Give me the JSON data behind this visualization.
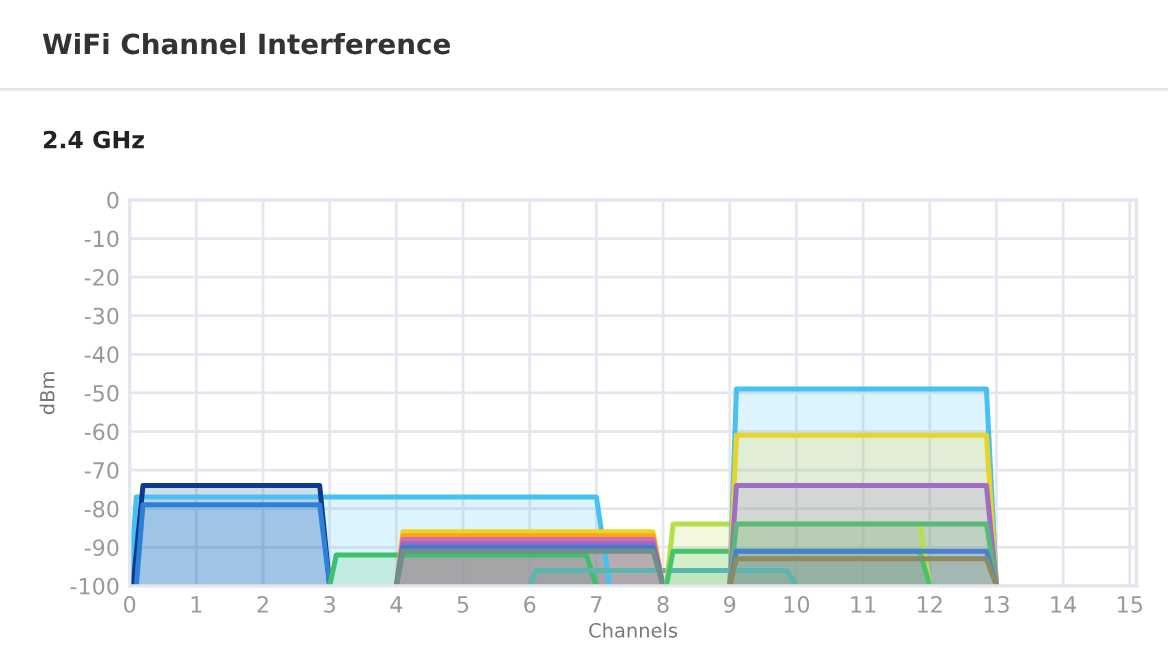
{
  "chart_data": {
    "type": "area",
    "title": "WiFi Channel Interference",
    "subtitle": "2.4 GHz",
    "xlabel": "Channels",
    "ylabel": "dBm",
    "xlim": [
      0,
      15.1
    ],
    "ylim": [
      -100,
      0
    ],
    "xticks": [
      0,
      1,
      2,
      3,
      4,
      5,
      6,
      7,
      8,
      9,
      10,
      11,
      12,
      13,
      14,
      15
    ],
    "yticks": [
      0,
      -10,
      -20,
      -30,
      -40,
      -50,
      -60,
      -70,
      -80,
      -90,
      -100
    ],
    "grid": true,
    "legend": false,
    "marker": "none",
    "line_style": "solid",
    "series": [
      {
        "color": "#46c2f2",
        "x": [
          0,
          0.1,
          7.0,
          7.2
        ],
        "values": [
          -100,
          -77,
          -77,
          -100
        ]
      },
      {
        "color": "#0d3b8e",
        "x": [
          0.05,
          0.2,
          2.85,
          3.0
        ],
        "values": [
          -100,
          -74,
          -74,
          -100
        ]
      },
      {
        "color": "#2f7fd8",
        "x": [
          0.1,
          0.2,
          2.85,
          3.0
        ],
        "values": [
          -100,
          -79,
          -79,
          -100
        ]
      },
      {
        "color": "#3cc06a",
        "x": [
          3.0,
          3.1,
          6.85,
          7.0
        ],
        "values": [
          -100,
          -92,
          -92,
          -100
        ]
      },
      {
        "color": "#5bb6b0",
        "x": [
          6.0,
          6.1,
          9.85,
          10.0
        ],
        "values": [
          -100,
          -96,
          -96,
          -100
        ]
      },
      {
        "color": "#f2d31b",
        "x": [
          4.0,
          4.1,
          7.85,
          8.0
        ],
        "values": [
          -100,
          -86,
          -86,
          -100
        ]
      },
      {
        "color": "#f5a623",
        "x": [
          4.0,
          4.1,
          7.85,
          8.0
        ],
        "values": [
          -100,
          -87,
          -87,
          -100
        ]
      },
      {
        "color": "#d96aa6",
        "x": [
          4.0,
          4.1,
          7.85,
          8.0
        ],
        "values": [
          -100,
          -88,
          -88,
          -100
        ]
      },
      {
        "color": "#9b6bcc",
        "x": [
          4.0,
          4.1,
          7.85,
          8.0
        ],
        "values": [
          -100,
          -89,
          -89,
          -100
        ]
      },
      {
        "color": "#4a78c8",
        "x": [
          4.0,
          4.1,
          7.85,
          8.0
        ],
        "values": [
          -100,
          -90,
          -90,
          -100
        ]
      },
      {
        "color": "#6f8f8a",
        "x": [
          4.0,
          4.1,
          7.85,
          8.0
        ],
        "values": [
          -100,
          -91,
          -91,
          -100
        ]
      },
      {
        "color": "#b5e04a",
        "x": [
          8.05,
          8.15,
          11.85,
          12.0
        ],
        "values": [
          -100,
          -84,
          -84,
          -100
        ]
      },
      {
        "color": "#45c46a",
        "x": [
          8.05,
          8.15,
          11.85,
          12.0
        ],
        "values": [
          -100,
          -91,
          -91,
          -100
        ]
      },
      {
        "color": "#47c1f0",
        "x": [
          9.0,
          9.1,
          12.85,
          13.0
        ],
        "values": [
          -100,
          -49,
          -49,
          -100
        ]
      },
      {
        "color": "#e8d32a",
        "x": [
          9.0,
          9.1,
          12.85,
          13.0
        ],
        "values": [
          -100,
          -61,
          -61,
          -100
        ]
      },
      {
        "color": "#9d6dc8",
        "x": [
          9.0,
          9.1,
          12.85,
          13.0
        ],
        "values": [
          -100,
          -74,
          -74,
          -100
        ]
      },
      {
        "color": "#5cb87a",
        "x": [
          9.0,
          9.1,
          12.85,
          13.0
        ],
        "values": [
          -100,
          -84,
          -84,
          -100
        ]
      },
      {
        "color": "#4a80d0",
        "x": [
          9.0,
          9.1,
          12.85,
          13.0
        ],
        "values": [
          -100,
          -91,
          -91,
          -100
        ]
      },
      {
        "color": "#8f8a60",
        "x": [
          9.0,
          9.1,
          12.85,
          13.0
        ],
        "values": [
          -100,
          -93,
          -93,
          -100
        ]
      }
    ]
  }
}
